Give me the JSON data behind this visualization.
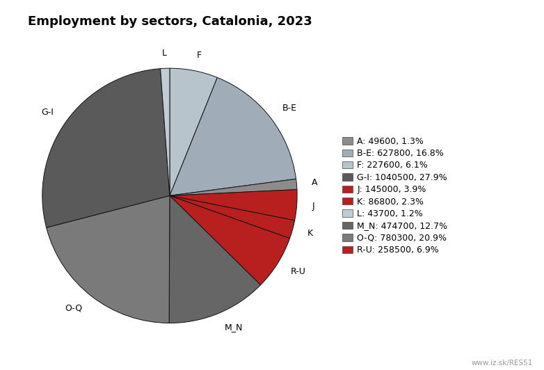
{
  "title": "Employment by sectors, Catalonia, 2023",
  "ordered_sectors": [
    "F",
    "B-E",
    "A",
    "J",
    "K",
    "R-U",
    "M_N",
    "O-Q",
    "G-I",
    "L"
  ],
  "ordered_values": [
    227600,
    627800,
    49600,
    145000,
    86800,
    258500,
    474700,
    780300,
    1040500,
    43700
  ],
  "sector_colors": {
    "A": "#8c8c8c",
    "B-E": "#a0acb8",
    "F": "#b8c4cc",
    "G-I": "#5a5a5a",
    "J": "#b82020",
    "K": "#b82020",
    "L": "#c0ccd4",
    "M_N": "#666666",
    "O-Q": "#7a7a7a",
    "R-U": "#b82020"
  },
  "legend_order": [
    "A",
    "B-E",
    "F",
    "G-I",
    "J",
    "K",
    "L",
    "M_N",
    "O-Q",
    "R-U"
  ],
  "legend_labels": {
    "A": "A: 49600, 1.3%",
    "B-E": "B-E: 627800, 16.8%",
    "F": "F: 227600, 6.1%",
    "G-I": "G-I: 1040500, 27.9%",
    "J": "J: 145000, 3.9%",
    "K": "K: 86800, 2.3%",
    "L": "L: 43700, 1.2%",
    "M_N": "M_N: 474700, 12.7%",
    "O-Q": "O-Q: 780300, 20.9%",
    "R-U": "R-U: 258500, 6.9%"
  },
  "watermark": "www.iz.sk/RES51",
  "background_color": "#ffffff",
  "title_fontsize": 13,
  "label_fontsize": 9,
  "legend_fontsize": 9
}
